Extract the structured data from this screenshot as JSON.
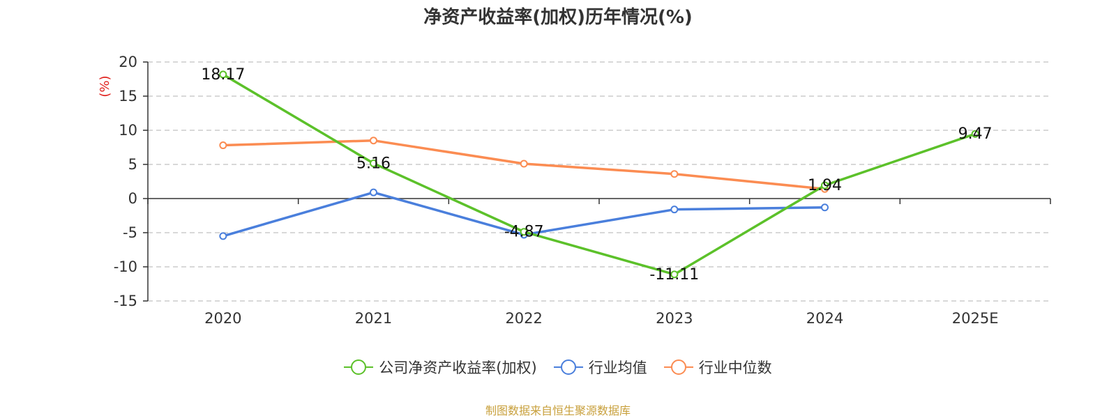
{
  "chart_data": {
    "type": "line",
    "title": "净资产收益率(加权)历年情况(%)",
    "ylabel": "(%)",
    "ylim": [
      -15,
      20
    ],
    "yticks": [
      20,
      15,
      10,
      5,
      0,
      -5,
      -10,
      -15
    ],
    "grid": true,
    "legend_position": "bottom-center",
    "categories": [
      "2020",
      "2021",
      "2022",
      "2023",
      "2024",
      "2025E"
    ],
    "series": [
      {
        "name": "公司净资产收益率(加权)",
        "color": "#5cc12a",
        "values": [
          18.17,
          5.16,
          -4.87,
          -11.11,
          1.94,
          9.47
        ],
        "labels": [
          "18.17",
          "5.16",
          "-4.87",
          "-11.11",
          "1.94",
          "9.47"
        ]
      },
      {
        "name": "行业均值",
        "color": "#4a7fdc",
        "values": [
          -5.5,
          0.9,
          -5.3,
          -1.6,
          -1.3,
          null
        ]
      },
      {
        "name": "行业中位数",
        "color": "#fb8c52",
        "values": [
          7.8,
          8.5,
          5.1,
          3.6,
          1.4,
          null
        ]
      }
    ]
  },
  "source_note": "制图数据来自恒生聚源数据库"
}
